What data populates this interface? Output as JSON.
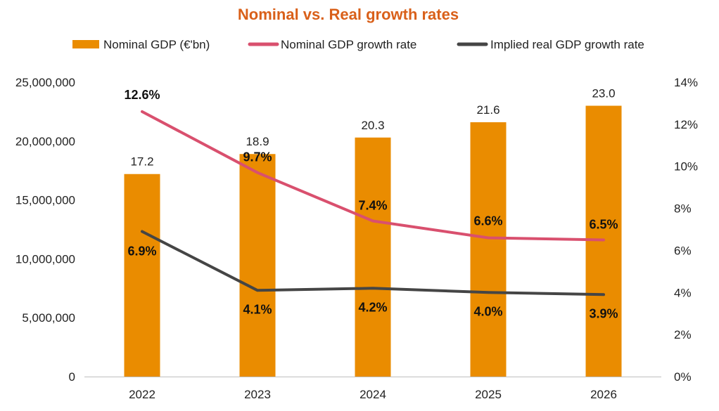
{
  "chart_data": {
    "type": "bar",
    "title": "Nominal vs. Real growth rates",
    "categories": [
      "2022",
      "2023",
      "2024",
      "2025",
      "2026"
    ],
    "legend": {
      "nominal_gdp": "Nominal GDP (€'bn)",
      "nominal_rate": "Nominal GDP growth rate",
      "real_rate": "Implied real GDP growth rate"
    },
    "series": [
      {
        "name": "Nominal GDP (€'bn)",
        "axis": "left",
        "type": "bar",
        "values": [
          17200000,
          18900000,
          20300000,
          21600000,
          23000000
        ],
        "labels": [
          "17.2",
          "18.9",
          "20.3",
          "21.6",
          "23.0"
        ]
      },
      {
        "name": "Nominal GDP growth rate",
        "axis": "right",
        "type": "line",
        "values": [
          12.6,
          9.7,
          7.4,
          6.6,
          6.5
        ],
        "labels": [
          "12.6%",
          "9.7%",
          "7.4%",
          "6.6%",
          "6.5%"
        ]
      },
      {
        "name": "Implied real GDP growth rate",
        "axis": "right",
        "type": "line",
        "values": [
          6.9,
          4.1,
          4.2,
          4.0,
          3.9
        ],
        "labels": [
          "6.9%",
          "4.1%",
          "4.2%",
          "4.0%",
          "3.9%"
        ]
      }
    ],
    "y_left": {
      "ylim": [
        0,
        25000000
      ],
      "ticks": [
        0,
        5000000,
        10000000,
        15000000,
        20000000,
        25000000
      ],
      "tick_labels": [
        "0",
        "5,000,000",
        "10,000,000",
        "15,000,000",
        "20,000,000",
        "25,000,000"
      ]
    },
    "y_right": {
      "ylim": [
        0,
        14
      ],
      "ticks": [
        0,
        2,
        4,
        6,
        8,
        10,
        12,
        14
      ],
      "tick_labels": [
        "0%",
        "2%",
        "4%",
        "6%",
        "8%",
        "10%",
        "12%",
        "14%"
      ]
    },
    "colors": {
      "title": "#D9601A",
      "bar": "#EA8C00",
      "nominal_line": "#D9506E",
      "real_line": "#454545",
      "axis": "#BFBFBF"
    },
    "grid": false,
    "legend_position": "top"
  }
}
